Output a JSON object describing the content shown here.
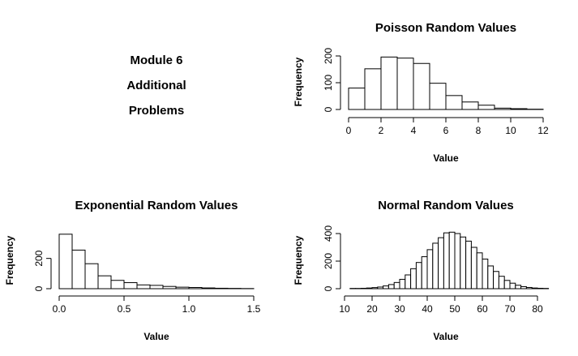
{
  "text_panel": {
    "lines": [
      "Module 6",
      "Additional",
      "Problems"
    ]
  },
  "chart_data": [
    {
      "type": "bar",
      "title": "Poisson Random Values",
      "xlabel": "Value",
      "ylabel": "Frequency",
      "x_ticks": [
        0,
        2,
        4,
        6,
        8,
        10,
        12
      ],
      "y_ticks": [
        0,
        100,
        200
      ],
      "xlim": [
        0,
        12
      ],
      "ylim": [
        0,
        200
      ],
      "bin_edges": [
        0,
        1,
        2,
        3,
        4,
        5,
        6,
        7,
        8,
        9,
        10,
        11,
        12
      ],
      "counts": [
        80,
        152,
        196,
        192,
        172,
        98,
        52,
        28,
        16,
        5,
        3,
        1
      ]
    },
    {
      "type": "bar",
      "title": "Exponential Random Values",
      "xlabel": "Value",
      "ylabel": "Frequency",
      "x_ticks": [
        0.0,
        0.5,
        1.0,
        1.5
      ],
      "x_tick_labels": [
        "0.0",
        "0.5",
        "1.0",
        "1.5"
      ],
      "y_ticks": [
        0,
        200
      ],
      "xlim": [
        0,
        1.5
      ],
      "ylim": [
        0,
        300
      ],
      "bin_edges": [
        0,
        0.1,
        0.2,
        0.3,
        0.4,
        0.5,
        0.6,
        0.7,
        0.8,
        0.9,
        1.0,
        1.1,
        1.2,
        1.3,
        1.4,
        1.5
      ],
      "counts": [
        360,
        255,
        165,
        85,
        55,
        40,
        25,
        22,
        15,
        10,
        8,
        5,
        3,
        2,
        1
      ]
    },
    {
      "type": "bar",
      "title": "Normal Random Values",
      "xlabel": "Value",
      "ylabel": "Frequency",
      "x_ticks": [
        10,
        20,
        30,
        40,
        50,
        60,
        70,
        80
      ],
      "y_ticks": [
        0,
        200,
        400
      ],
      "xlim": [
        10,
        80
      ],
      "ylim": [
        0,
        400
      ],
      "bin_edges": [
        12,
        14,
        16,
        18,
        20,
        22,
        24,
        26,
        28,
        30,
        32,
        34,
        36,
        38,
        40,
        42,
        44,
        46,
        48,
        50,
        52,
        54,
        56,
        58,
        60,
        62,
        64,
        66,
        68,
        70,
        72,
        74,
        76,
        78,
        80,
        82,
        84
      ],
      "counts": [
        2,
        2,
        3,
        5,
        8,
        12,
        20,
        30,
        45,
        68,
        100,
        145,
        190,
        232,
        283,
        330,
        370,
        405,
        410,
        400,
        375,
        345,
        300,
        260,
        215,
        165,
        125,
        90,
        60,
        40,
        25,
        15,
        9,
        5,
        3,
        2
      ]
    }
  ]
}
